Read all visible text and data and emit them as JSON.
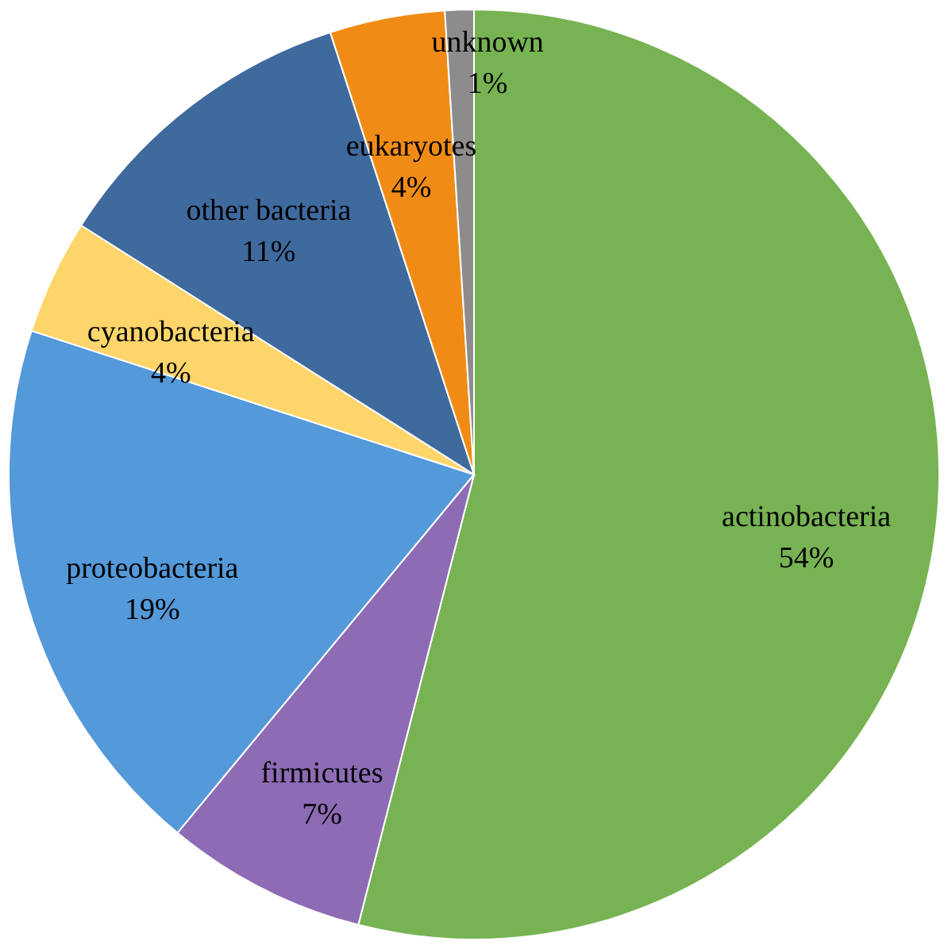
{
  "chart_data": {
    "type": "pie",
    "categories": [
      "actinobacteria",
      "firmicutes",
      "proteobacteria",
      "cyanobacteria",
      "other bacteria",
      "eukaryotes",
      "unknown"
    ],
    "values": [
      54,
      7,
      19,
      4,
      11,
      4,
      1
    ],
    "value_labels": [
      "54%",
      "7%",
      "19%",
      "4%",
      "11%",
      "4%",
      "1%"
    ],
    "colors": [
      "#77b352",
      "#8e6bb5",
      "#5499d9",
      "#fdd56b",
      "#3f6a9e",
      "#f08c16",
      "#8c8c8c"
    ]
  }
}
